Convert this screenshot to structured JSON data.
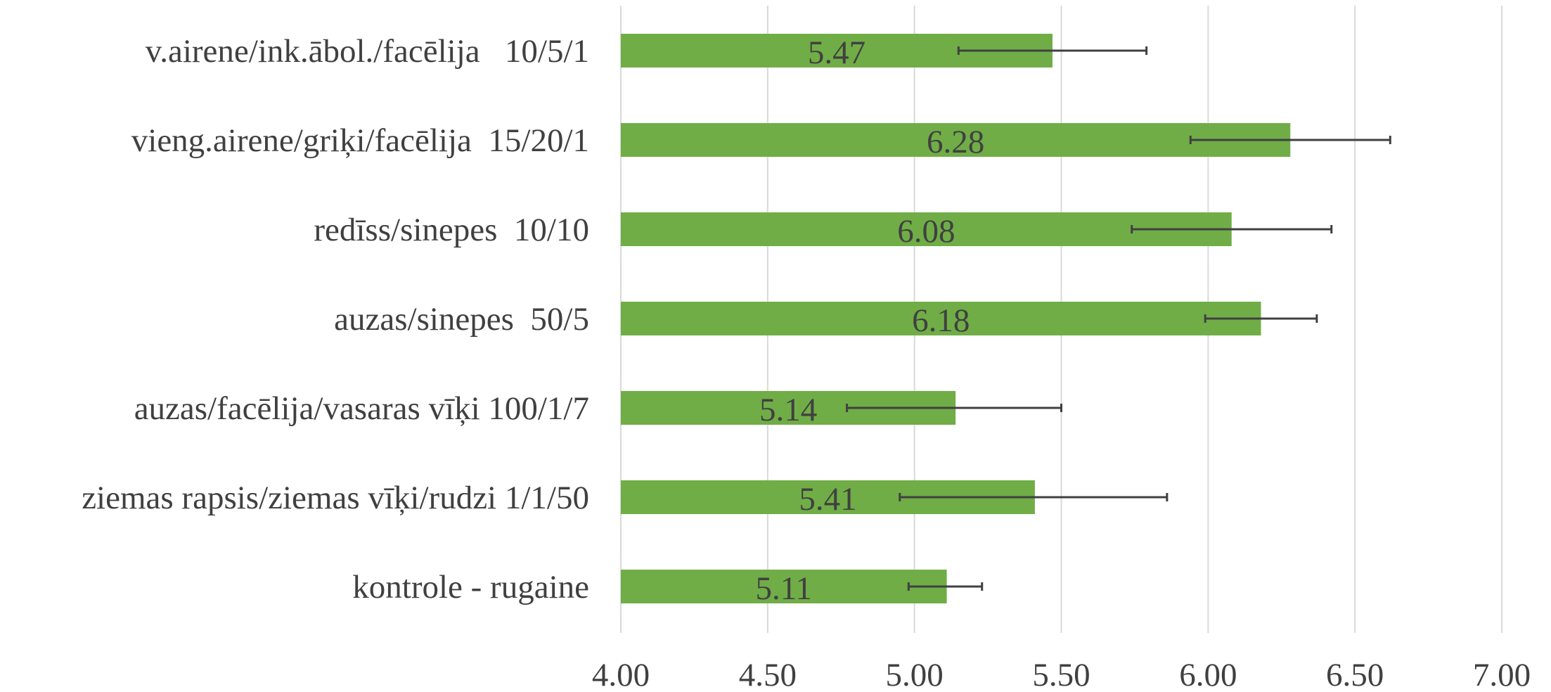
{
  "chart_data": {
    "type": "bar",
    "orientation": "horizontal",
    "title": "",
    "xlabel": "",
    "ylabel": "",
    "xlim": [
      4.0,
      7.0
    ],
    "x_ticks": [
      "4.00",
      "4.50",
      "5.00",
      "5.50",
      "6.00",
      "6.50",
      "7.00"
    ],
    "x_tick_values": [
      4.0,
      4.5,
      5.0,
      5.5,
      6.0,
      6.5,
      7.0
    ],
    "grid": "vertical",
    "legend": "none",
    "bar_color": "#70ad47",
    "errorbar_color": "#404040",
    "categories": [
      "v.airene/ink.ābol./facēlija   10/5/1",
      "vieng.airene/griķi/facēlija  15/20/1",
      "redīss/sinepes  10/10",
      "auzas/sinepes  50/5",
      "auzas/facēlija/vasaras vīķi 100/1/7",
      "ziemas rapsis/ziemas vīķi/rudzi 1/1/50",
      "kontrole - rugaine"
    ],
    "values": [
      5.47,
      6.28,
      6.08,
      6.18,
      5.14,
      5.41,
      5.11
    ],
    "value_labels": [
      "5.47",
      "6.28",
      "6.08",
      "6.18",
      "5.14",
      "5.41",
      "5.11"
    ],
    "error_low": [
      5.15,
      5.94,
      5.74,
      5.99,
      4.77,
      4.95,
      4.98
    ],
    "error_high": [
      5.79,
      6.62,
      6.42,
      6.37,
      5.5,
      5.86,
      5.23
    ]
  }
}
